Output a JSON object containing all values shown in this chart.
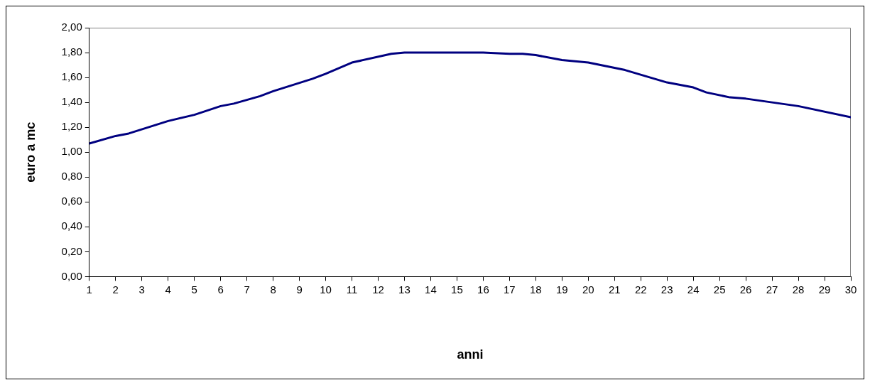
{
  "chart_data": {
    "type": "line",
    "xlabel": "anni",
    "ylabel": "euro a mc",
    "x": [
      1,
      2,
      2.5,
      4,
      5,
      6,
      6.5,
      7.5,
      8,
      9.5,
      10,
      11,
      12.5,
      13,
      16,
      17,
      17.5,
      18,
      19,
      20,
      21.4,
      23,
      24,
      24.5,
      25.4,
      26,
      27,
      28,
      30
    ],
    "series": [
      {
        "color": "#000080",
        "values": [
          1.07,
          1.13,
          1.15,
          1.25,
          1.3,
          1.37,
          1.39,
          1.45,
          1.49,
          1.59,
          1.63,
          1.72,
          1.79,
          1.8,
          1.8,
          1.79,
          1.79,
          1.78,
          1.74,
          1.72,
          1.66,
          1.56,
          1.52,
          1.48,
          1.44,
          1.43,
          1.4,
          1.37,
          1.28
        ]
      }
    ],
    "xlim": [
      1,
      30
    ],
    "xticks": [
      1,
      2,
      3,
      4,
      5,
      6,
      7,
      8,
      9,
      10,
      11,
      12,
      13,
      14,
      15,
      16,
      17,
      18,
      19,
      20,
      21,
      22,
      23,
      24,
      25,
      26,
      27,
      28,
      29,
      30
    ],
    "ylim": [
      0,
      2
    ],
    "yticks": [
      {
        "value": 0,
        "label": "0,00"
      },
      {
        "value": 0.2,
        "label": "0,20"
      },
      {
        "value": 0.4,
        "label": "0,40"
      },
      {
        "value": 0.6,
        "label": "0,60"
      },
      {
        "value": 0.8,
        "label": "0,80"
      },
      {
        "value": 1,
        "label": "1,00"
      },
      {
        "value": 1.2,
        "label": "1,20"
      },
      {
        "value": 1.4,
        "label": "1,40"
      },
      {
        "value": 1.6,
        "label": "1,60"
      },
      {
        "value": 1.8,
        "label": "1,80"
      },
      {
        "value": 2,
        "label": "2,00"
      }
    ],
    "grid": false,
    "legend": false,
    "marker": "none",
    "line_style": "solid"
  }
}
